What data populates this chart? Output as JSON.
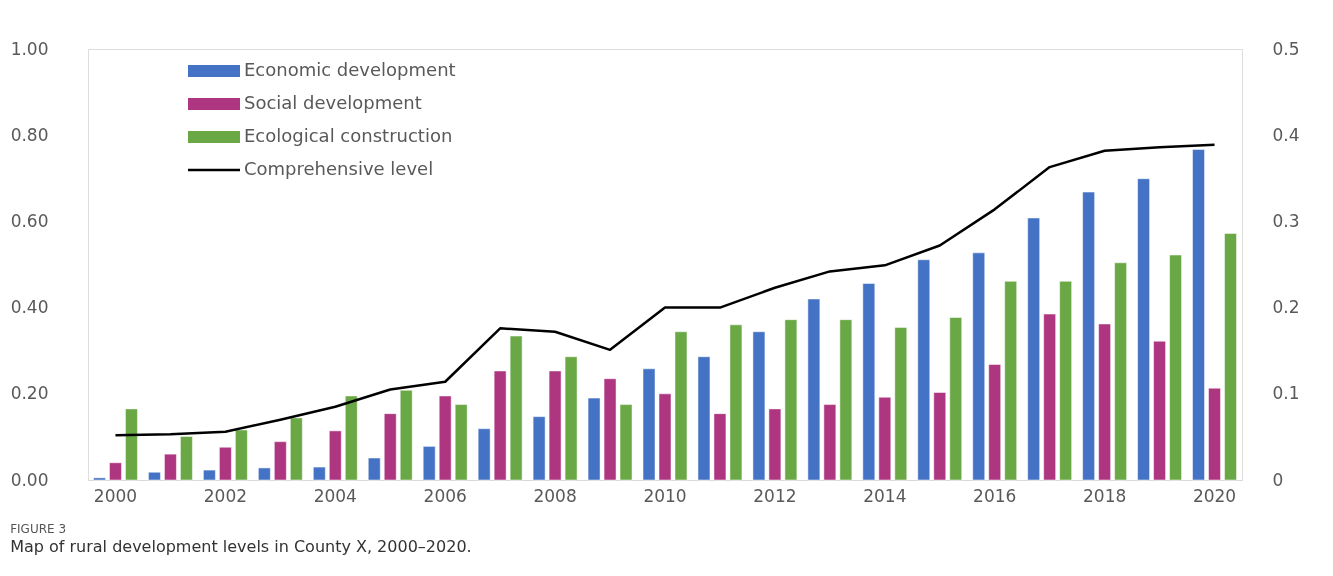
{
  "chart_data": {
    "type": "bar",
    "annotations": [
      "FIGURE 3",
      "Map of rural development levels in County X, 2000–2020."
    ],
    "categories": [
      "2000",
      null,
      "2002",
      null,
      "2004",
      null,
      "2006",
      null,
      "2008",
      null,
      "2010",
      null,
      "2012",
      null,
      "2014",
      null,
      "2016",
      null,
      "2018",
      null,
      "2020"
    ],
    "series": [
      {
        "name": "Economic development",
        "color": "#4472c4",
        "values": [
          0.005,
          0.018,
          0.023,
          0.028,
          0.03,
          0.051,
          0.078,
          0.119,
          0.147,
          0.19,
          0.258,
          0.286,
          0.344,
          0.42,
          0.456,
          0.511,
          0.527,
          0.608,
          0.668,
          0.699,
          0.767
        ]
      },
      {
        "name": "Social development",
        "color": "#ae3580",
        "values": [
          0.04,
          0.06,
          0.076,
          0.089,
          0.114,
          0.154,
          0.195,
          0.253,
          0.253,
          0.235,
          0.2,
          0.154,
          0.165,
          0.175,
          0.192,
          0.203,
          0.268,
          0.385,
          0.362,
          0.322,
          0.213
        ]
      },
      {
        "name": "Ecological construction",
        "color": "#6aa845",
        "values": [
          0.165,
          0.101,
          0.116,
          0.144,
          0.195,
          0.208,
          0.175,
          0.334,
          0.286,
          0.175,
          0.344,
          0.36,
          0.372,
          0.372,
          0.354,
          0.377,
          0.461,
          0.461,
          0.504,
          0.522,
          0.572
        ]
      },
      {
        "name": "Comprehensive level",
        "color": "#000000",
        "type": "line",
        "axis": "y2",
        "values": [
          0.052,
          0.053,
          0.056,
          0.07,
          0.085,
          0.105,
          0.114,
          0.176,
          0.172,
          0.151,
          0.2,
          0.2,
          0.223,
          0.242,
          0.249,
          0.272,
          0.314,
          0.363,
          0.382,
          0.386,
          0.389
        ]
      }
    ],
    "ylim": [
      0,
      1
    ],
    "yticks": [
      {
        "value": 0,
        "label": "0.00"
      },
      {
        "value": 0.2,
        "label": "0.20"
      },
      {
        "value": 0.4,
        "label": "0.40"
      },
      {
        "value": 0.6,
        "label": "0.60"
      },
      {
        "value": 0.8,
        "label": "0.80"
      },
      {
        "value": 1,
        "label": "1.00"
      }
    ],
    "y2lim": [
      0,
      0.5
    ],
    "y2ticks": [
      0,
      0.1,
      0.2,
      0.3,
      0.4,
      0.5
    ],
    "legend": "top left",
    "grid": false
  }
}
